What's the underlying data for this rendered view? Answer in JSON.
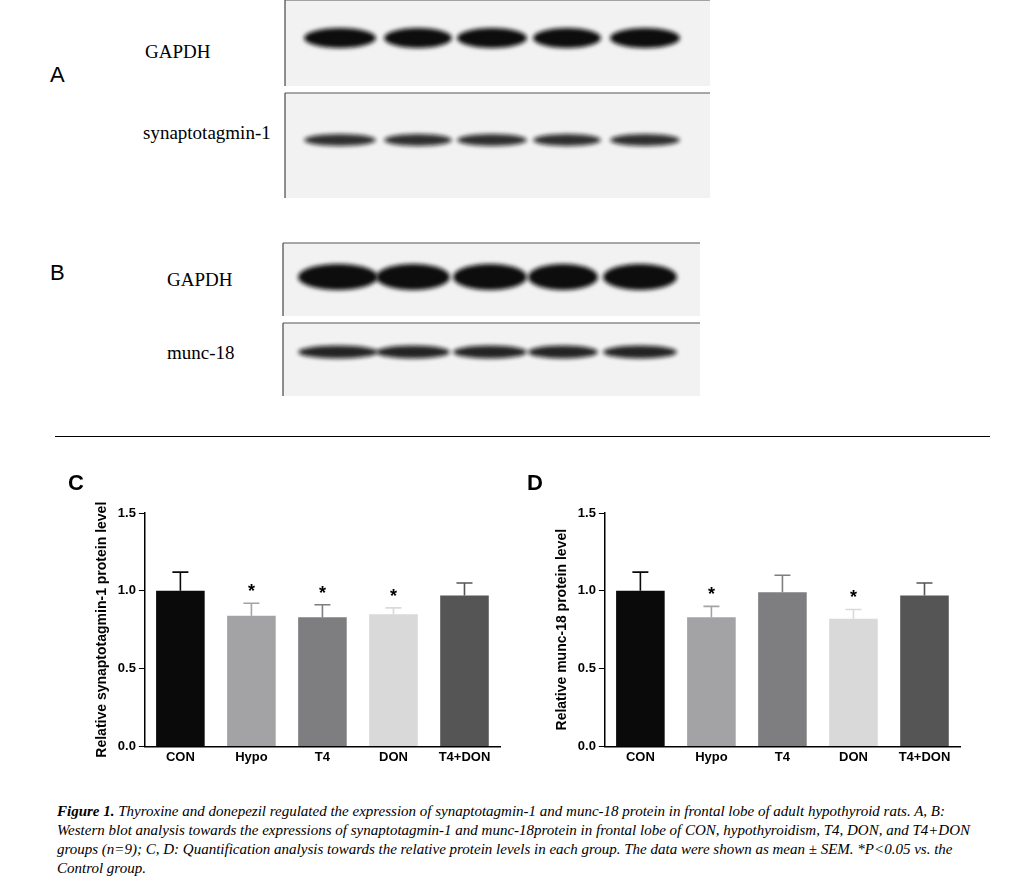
{
  "blots": [
    {
      "panel_label": "A",
      "rows": [
        "GAPDH",
        "synaptotagmin-1"
      ]
    },
    {
      "panel_label": "B",
      "rows": [
        "GAPDH",
        "munc-18"
      ]
    }
  ],
  "chart_data": [
    {
      "panel_label": "C",
      "type": "bar",
      "categories": [
        "CON",
        "Hypo",
        "T4",
        "DON",
        "T4+DON"
      ],
      "values": [
        1.0,
        0.84,
        0.83,
        0.85,
        0.97
      ],
      "errors": [
        0.12,
        0.08,
        0.08,
        0.04,
        0.08
      ],
      "colors": [
        "#0a0a0a",
        "#a3a3a6",
        "#7e7e80",
        "#d9d9d9",
        "#555555"
      ],
      "ylabel": "Relative synaptotagmin-1 protein level",
      "ylim": [
        0,
        1.5
      ],
      "yticks": [
        {
          "value": 0,
          "label": "0.0"
        },
        {
          "value": 0.5,
          "label": "0.5"
        },
        {
          "value": 1,
          "label": "1.0"
        },
        {
          "value": 1.5,
          "label": "1.5"
        }
      ],
      "grid": false,
      "annotations": [
        {
          "category": "Hypo",
          "text": "*"
        },
        {
          "category": "T4",
          "text": "*"
        },
        {
          "category": "DON",
          "text": "*"
        }
      ]
    },
    {
      "panel_label": "D",
      "type": "bar",
      "categories": [
        "CON",
        "Hypo",
        "T4",
        "DON",
        "T4+DON"
      ],
      "values": [
        1.0,
        0.83,
        0.99,
        0.82,
        0.97
      ],
      "errors": [
        0.12,
        0.07,
        0.11,
        0.06,
        0.08
      ],
      "colors": [
        "#0a0a0a",
        "#a3a3a6",
        "#7e7e80",
        "#d9d9d9",
        "#555555"
      ],
      "ylabel": "Relative munc-18 protein level",
      "ylim": [
        0,
        1.5
      ],
      "yticks": [
        {
          "value": 0,
          "label": "0.0"
        },
        {
          "value": 0.5,
          "label": "0.5"
        },
        {
          "value": 1,
          "label": "1.0"
        },
        {
          "value": 1.5,
          "label": "1.5"
        }
      ],
      "grid": false,
      "annotations": [
        {
          "category": "Hypo",
          "text": "*"
        },
        {
          "category": "DON",
          "text": "*"
        }
      ]
    }
  ],
  "caption": {
    "label": "Figure 1.",
    "text": "Thyroxine and donepezil regulated the expression of synaptotagmin-1 and munc-18 protein in frontal lobe of adult hypothyroid rats. A, B: Western blot analysis towards the expressions of synaptotagmin-1 and munc-18protein in frontal lobe of CON, hypothyroidism, T4, DON, and T4+DON groups (n=9); C, D: Quantification analysis towards the relative protein levels in each group. The data were shown as mean ± SEM. *P<0.05 vs. the Control group."
  }
}
